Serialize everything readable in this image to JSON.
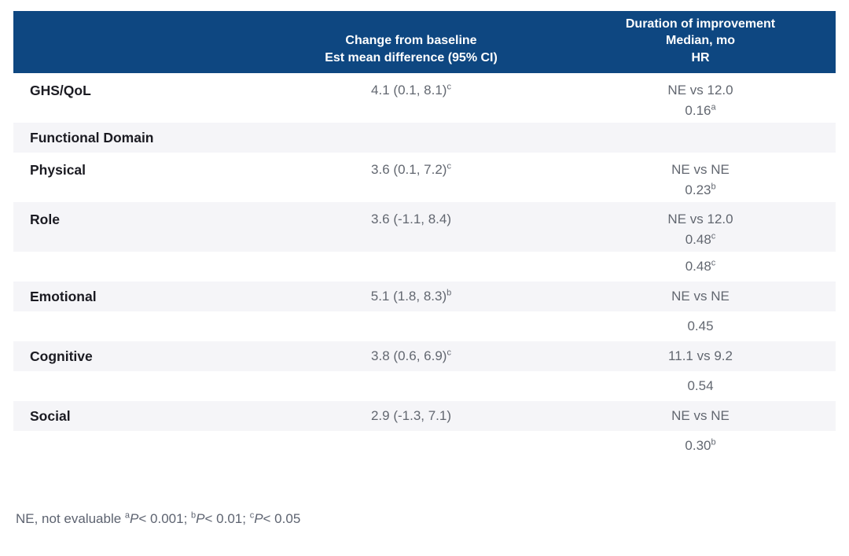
{
  "table": {
    "header": {
      "change_lines": [
        "Change from baseline",
        "Est mean difference (95% CI)"
      ],
      "duration_lines": [
        "Duration of improvement",
        "Median, mo",
        "HR"
      ]
    },
    "rows": [
      {
        "label": "GHS/QoL",
        "change": "4.1 (0.1, 8.1)",
        "change_sup": "c",
        "duration_line1": "NE vs 12.0",
        "duration_line2": "0.16",
        "duration_line2_sup": "a"
      },
      {
        "label": "Functional Domain"
      },
      {
        "label": "Physical",
        "change": "3.6 (0.1, 7.2)",
        "change_sup": "c",
        "duration_line1": "NE vs NE",
        "duration_line2": "0.23",
        "duration_line2_sup": "b"
      },
      {
        "label": "Role",
        "change": "3.6 (-1.1, 8.4)",
        "duration_line1": "NE vs 12.0",
        "duration_line2": "0.48",
        "duration_line2_sup": "c"
      },
      {
        "label": "",
        "duration_line1": "0.48",
        "duration_line1_sup": "c"
      },
      {
        "label": "Emotional",
        "change": "5.1 (1.8, 8.3)",
        "change_sup": "b",
        "duration_line1": "NE vs NE"
      },
      {
        "label": "",
        "duration_line1": "0.45"
      },
      {
        "label": "Cognitive",
        "change": "3.8 (0.6, 6.9)",
        "change_sup": "c",
        "duration_line1": "11.1 vs 9.2"
      },
      {
        "label": "",
        "duration_line1": "0.54"
      },
      {
        "label": "Social",
        "change": "2.9 (-1.3, 7.1)",
        "duration_line1": "NE vs NE"
      },
      {
        "label": "",
        "duration_line1": "0.30",
        "duration_line1_sup": "b"
      }
    ]
  },
  "footnote": {
    "prefix": "NE, not evaluable ",
    "notes": [
      {
        "sup": "a",
        "p": "P",
        "text": "< 0.001; "
      },
      {
        "sup": "b",
        "p": "P",
        "text": "< 0.01; "
      },
      {
        "sup": "c",
        "p": "P",
        "text": "< 0.05"
      }
    ]
  },
  "colors": {
    "header_bg": "#0e4781",
    "header_text": "#ffffff",
    "zebra_row": "#f5f5f8",
    "label_text": "#1b1b22",
    "data_text": "#626770"
  }
}
